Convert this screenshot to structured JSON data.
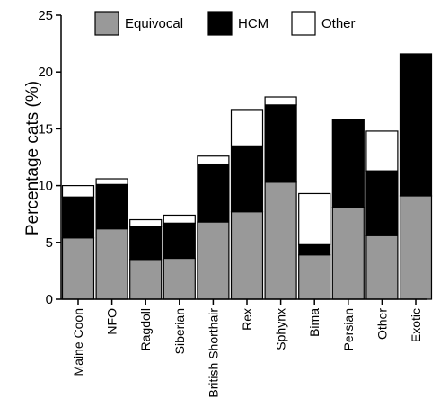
{
  "chart_data": {
    "type": "bar",
    "stacked": true,
    "ylabel": "Percentage cats (%)",
    "xlabel": "",
    "ylim": [
      0,
      25
    ],
    "yticks": [
      0,
      5,
      10,
      15,
      20,
      25
    ],
    "grid": false,
    "legend_position": "top",
    "categories": [
      "Maine Coon",
      "NFO",
      "Ragdoll",
      "Siberian",
      "British Shorthair",
      "Rex",
      "Sphynx",
      "Bimа",
      "Persian",
      "Other",
      "Exotic"
    ],
    "series": [
      {
        "name": "Equivocal",
        "color": "#999999",
        "values": [
          5.4,
          6.2,
          3.5,
          3.6,
          6.8,
          7.7,
          10.3,
          3.9,
          8.1,
          5.6,
          9.1
        ]
      },
      {
        "name": "HCM",
        "color": "#000000",
        "values": [
          3.6,
          3.9,
          2.9,
          3.1,
          5.1,
          5.8,
          6.8,
          0.9,
          7.7,
          5.7,
          12.5
        ]
      },
      {
        "name": "Other",
        "color": "#ffffff",
        "values": [
          1.0,
          0.5,
          0.6,
          0.7,
          0.7,
          3.2,
          0.7,
          4.5,
          0.0,
          3.5,
          0.0
        ]
      }
    ]
  }
}
